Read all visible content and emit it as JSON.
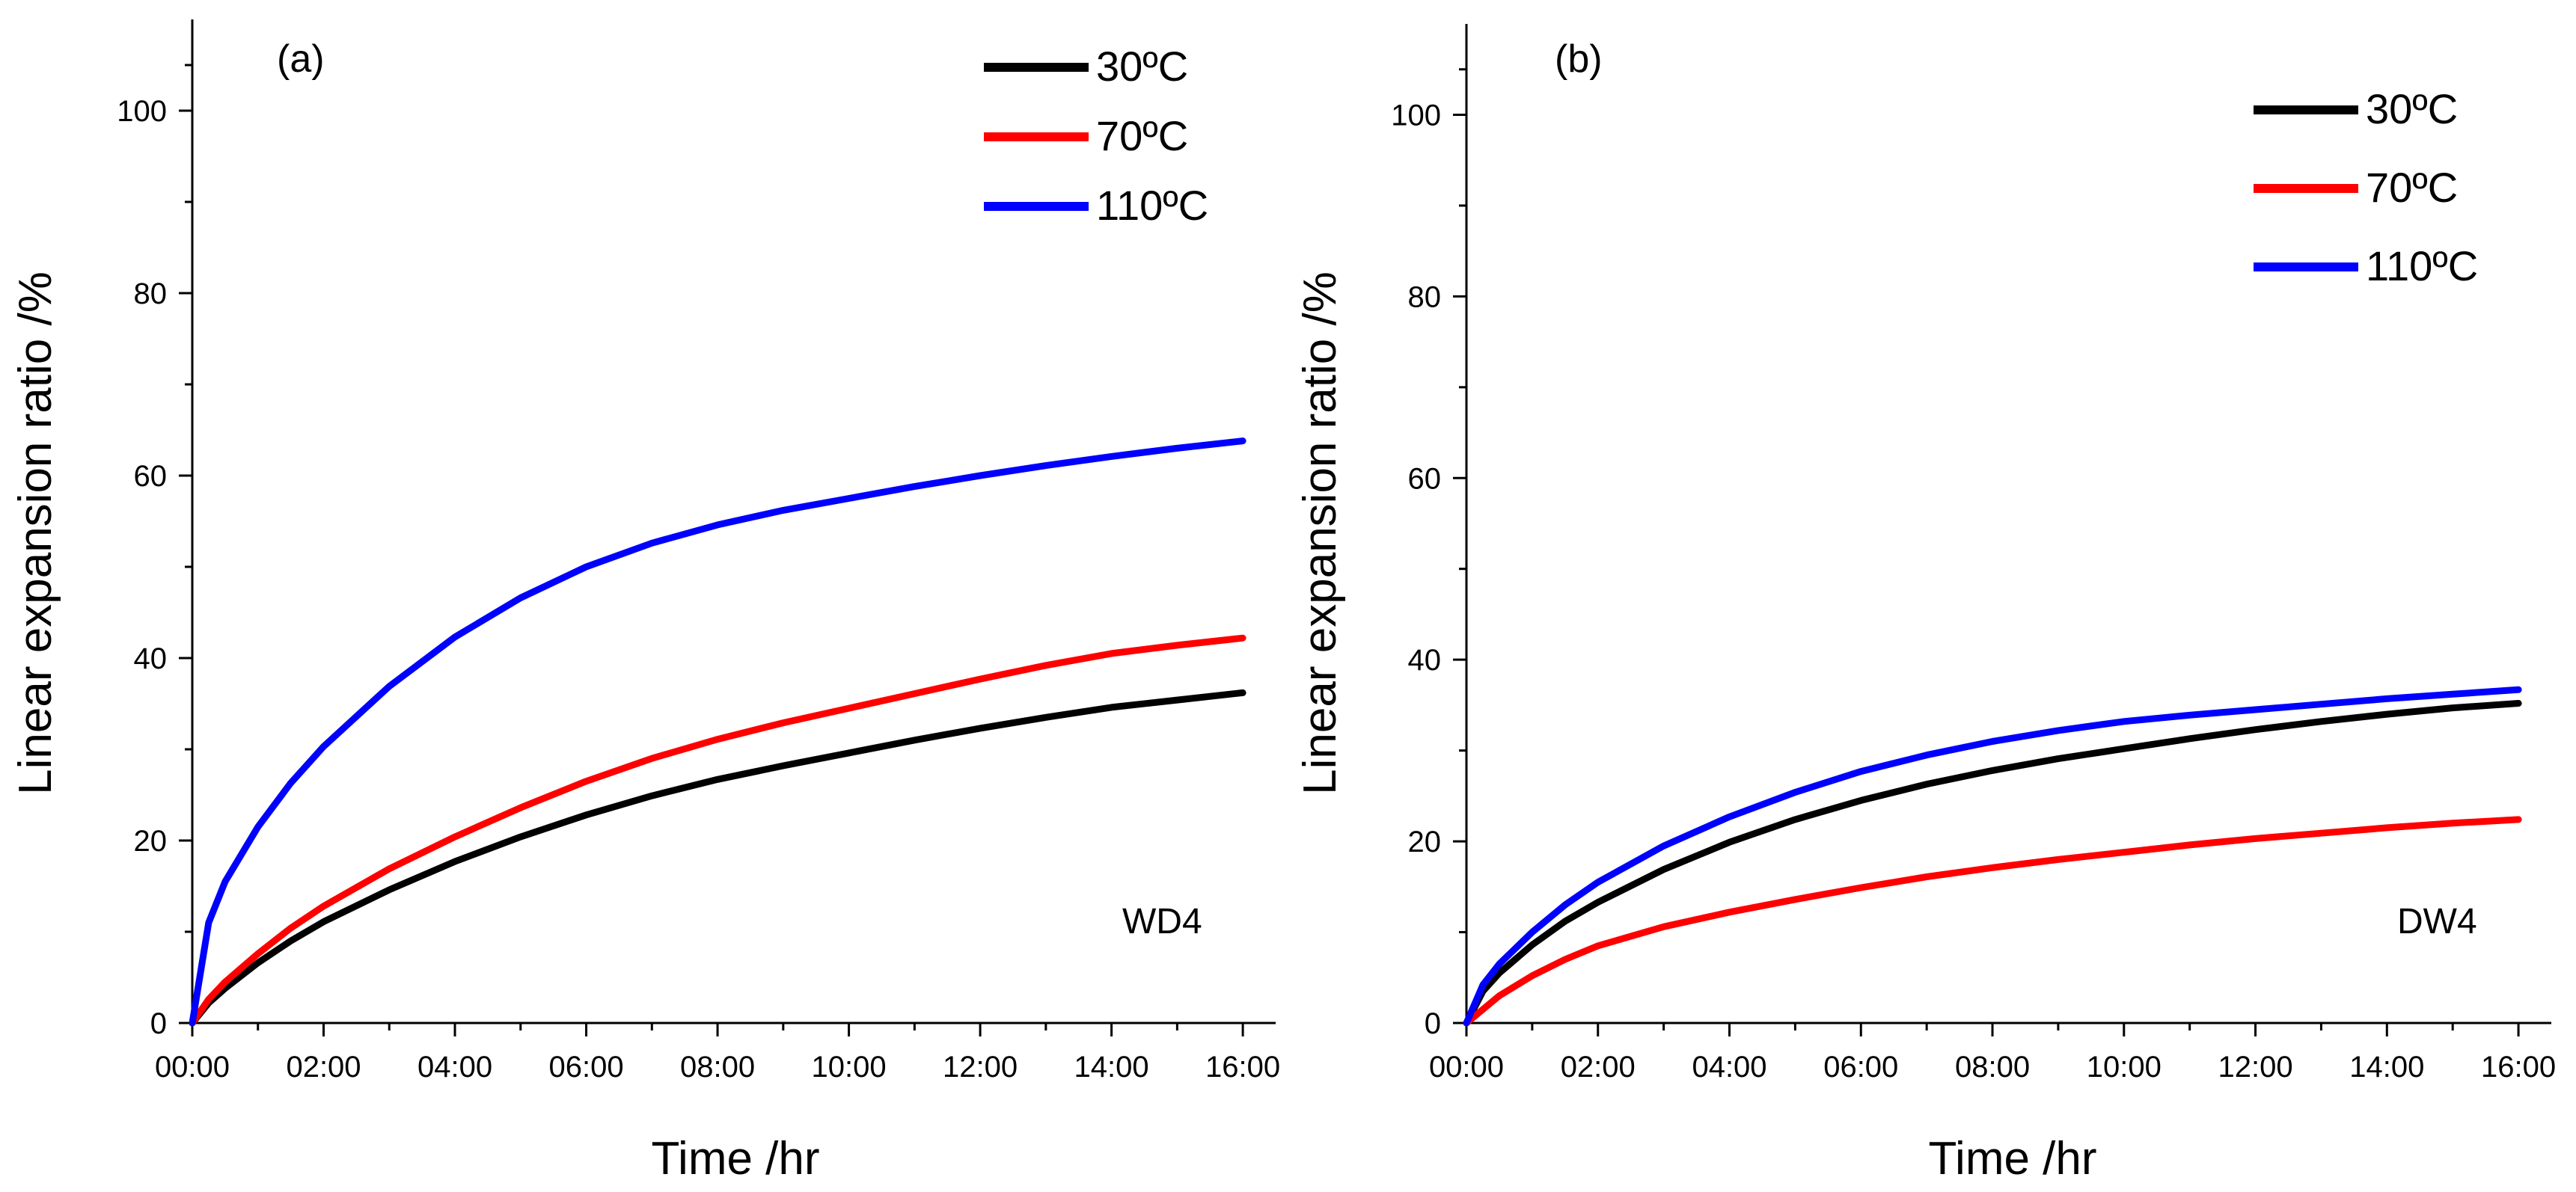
{
  "figure": {
    "colors": {
      "30C": "#000000",
      "70C": "#ff0000",
      "110C": "#0000ff"
    }
  },
  "chart_data": [
    {
      "type": "line",
      "panel_label": "(a)",
      "sample_label": "WD4",
      "xlabel": "Time /hr",
      "ylabel": "Linear expansion ratio /%",
      "xlim": [
        0,
        16.5
      ],
      "ylim": [
        0,
        110
      ],
      "x_ticks": [
        0,
        2,
        4,
        6,
        8,
        10,
        12,
        14,
        16
      ],
      "x_tick_labels": [
        "00:00",
        "02:00",
        "04:00",
        "06:00",
        "08:00",
        "10:00",
        "12:00",
        "14:00",
        "16:00"
      ],
      "y_ticks": [
        0,
        20,
        40,
        60,
        80,
        100
      ],
      "y_tick_labels": [
        "0",
        "20",
        "40",
        "60",
        "80",
        "100"
      ],
      "legend_position": "top-right",
      "x": [
        0,
        0.25,
        0.5,
        1,
        1.5,
        2,
        3,
        4,
        5,
        6,
        7,
        8,
        9,
        10,
        11,
        12,
        13,
        14,
        15,
        16
      ],
      "series": [
        {
          "name": "30ºC",
          "color": "#000000",
          "values": [
            0,
            2.2,
            3.8,
            6.6,
            9.0,
            11.1,
            14.6,
            17.7,
            20.4,
            22.8,
            24.9,
            26.7,
            28.2,
            29.6,
            31.0,
            32.3,
            33.5,
            34.6,
            35.4,
            36.2
          ]
        },
        {
          "name": "70ºC",
          "color": "#ff0000",
          "values": [
            0,
            2.6,
            4.5,
            7.6,
            10.4,
            12.8,
            16.9,
            20.4,
            23.6,
            26.5,
            29.0,
            31.1,
            32.9,
            34.5,
            36.1,
            37.7,
            39.2,
            40.5,
            41.4,
            42.2
          ]
        },
        {
          "name": "110ºC",
          "color": "#0000ff",
          "values": [
            0,
            11.0,
            15.5,
            21.5,
            26.3,
            30.3,
            36.9,
            42.3,
            46.6,
            50.0,
            52.6,
            54.6,
            56.2,
            57.5,
            58.8,
            60.0,
            61.1,
            62.1,
            63.0,
            63.8
          ]
        }
      ]
    },
    {
      "type": "line",
      "panel_label": "(b)",
      "sample_label": "DW4",
      "xlabel": "Time /hr",
      "ylabel": "Linear expansion ratio /%",
      "xlim": [
        0,
        16.5
      ],
      "ylim": [
        0,
        110
      ],
      "x_ticks": [
        0,
        2,
        4,
        6,
        8,
        10,
        12,
        14,
        16
      ],
      "x_tick_labels": [
        "00:00",
        "02:00",
        "04:00",
        "06:00",
        "08:00",
        "10:00",
        "12:00",
        "14:00",
        "16:00"
      ],
      "y_ticks": [
        0,
        20,
        40,
        60,
        80,
        100
      ],
      "y_tick_labels": [
        "0",
        "20",
        "40",
        "60",
        "80",
        "100"
      ],
      "legend_position": "top-right",
      "x": [
        0,
        0.25,
        0.5,
        1,
        1.5,
        2,
        3,
        4,
        5,
        6,
        7,
        8,
        9,
        10,
        11,
        12,
        13,
        14,
        15,
        16
      ],
      "series": [
        {
          "name": "30ºC",
          "color": "#000000",
          "values": [
            0,
            3.5,
            5.5,
            8.6,
            11.2,
            13.3,
            16.9,
            19.9,
            22.4,
            24.5,
            26.3,
            27.8,
            29.1,
            30.2,
            31.3,
            32.3,
            33.2,
            34.0,
            34.7,
            35.2
          ]
        },
        {
          "name": "70ºC",
          "color": "#ff0000",
          "values": [
            0,
            1.5,
            3.0,
            5.2,
            7.0,
            8.5,
            10.6,
            12.2,
            13.6,
            14.9,
            16.1,
            17.1,
            18.0,
            18.8,
            19.6,
            20.3,
            20.9,
            21.5,
            22.0,
            22.4
          ]
        },
        {
          "name": "110ºC",
          "color": "#0000ff",
          "values": [
            0,
            4.2,
            6.5,
            10.0,
            13.0,
            15.5,
            19.5,
            22.7,
            25.4,
            27.7,
            29.5,
            31.0,
            32.2,
            33.2,
            33.9,
            34.5,
            35.1,
            35.7,
            36.2,
            36.7
          ]
        }
      ]
    }
  ]
}
